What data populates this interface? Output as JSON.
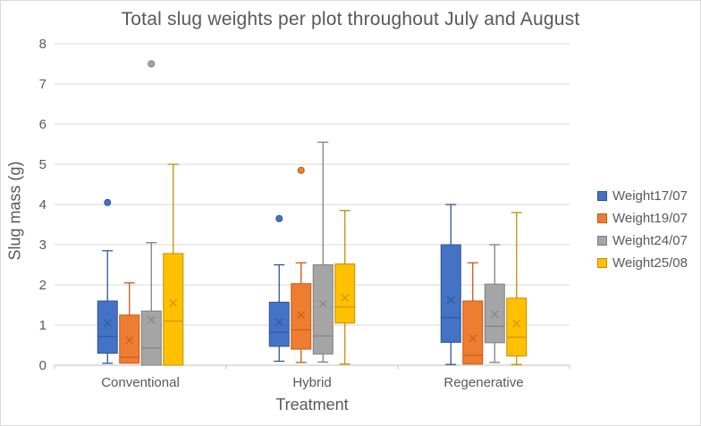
{
  "chart_data": {
    "type": "boxplot",
    "title": "Total slug weights per plot throughout July and August",
    "xlabel": "Treatment",
    "ylabel": "Slug mass (g)",
    "ylim": [
      0,
      8
    ],
    "ytick_step": 1,
    "grid": "horizontal-only",
    "legend_position": "right",
    "text_color": "#595959",
    "grid_color": "#D9D9D9",
    "axis_color": "#BFBFBF",
    "categories": [
      "Conventional",
      "Hybrid",
      "Regenerative"
    ],
    "series": [
      {
        "name": "Weight17/07",
        "fill": "#4472C4",
        "line": "#2F5597",
        "boxes": [
          {
            "low": 0.05,
            "q1": 0.3,
            "median": 0.72,
            "q3": 1.6,
            "high": 2.85,
            "mean": 1.05,
            "outliers": [
              4.05
            ]
          },
          {
            "low": 0.1,
            "q1": 0.47,
            "median": 0.82,
            "q3": 1.57,
            "high": 2.5,
            "mean": 1.07,
            "outliers": [
              3.65
            ]
          },
          {
            "low": 0.02,
            "q1": 0.57,
            "median": 1.18,
            "q3": 3.0,
            "high": 4.0,
            "mean": 1.62,
            "outliers": []
          }
        ]
      },
      {
        "name": "Weight19/07",
        "fill": "#ED7D31",
        "line": "#C55A11",
        "boxes": [
          {
            "low": 0.05,
            "q1": 0.05,
            "median": 0.2,
            "q3": 1.25,
            "high": 2.05,
            "mean": 0.62,
            "outliers": []
          },
          {
            "low": 0.07,
            "q1": 0.4,
            "median": 0.88,
            "q3": 2.03,
            "high": 2.55,
            "mean": 1.25,
            "outliers": [
              4.85
            ]
          },
          {
            "low": 0.03,
            "q1": 0.03,
            "median": 0.25,
            "q3": 1.6,
            "high": 2.55,
            "mean": 0.67,
            "outliers": []
          }
        ]
      },
      {
        "name": "Weight24/07",
        "fill": "#A5A5A5",
        "line": "#7F7F7F",
        "boxes": [
          {
            "low": 0.0,
            "q1": 0.0,
            "median": 0.43,
            "q3": 1.35,
            "high": 3.05,
            "mean": 1.13,
            "outliers": [
              7.5
            ]
          },
          {
            "low": 0.08,
            "q1": 0.28,
            "median": 0.73,
            "q3": 2.5,
            "high": 5.55,
            "mean": 1.53,
            "outliers": []
          },
          {
            "low": 0.07,
            "q1": 0.56,
            "median": 0.97,
            "q3": 2.02,
            "high": 3.0,
            "mean": 1.27,
            "outliers": []
          }
        ]
      },
      {
        "name": "Weight25/08",
        "fill": "#FFC000",
        "line": "#BF9000",
        "boxes": [
          {
            "low": 0.0,
            "q1": 0.0,
            "median": 1.1,
            "q3": 2.78,
            "high": 5.0,
            "mean": 1.55,
            "outliers": []
          },
          {
            "low": 0.03,
            "q1": 1.05,
            "median": 1.45,
            "q3": 2.52,
            "high": 3.85,
            "mean": 1.68,
            "outliers": []
          },
          {
            "low": 0.02,
            "q1": 0.23,
            "median": 0.7,
            "q3": 1.67,
            "high": 3.8,
            "mean": 1.04,
            "outliers": []
          }
        ]
      }
    ]
  }
}
